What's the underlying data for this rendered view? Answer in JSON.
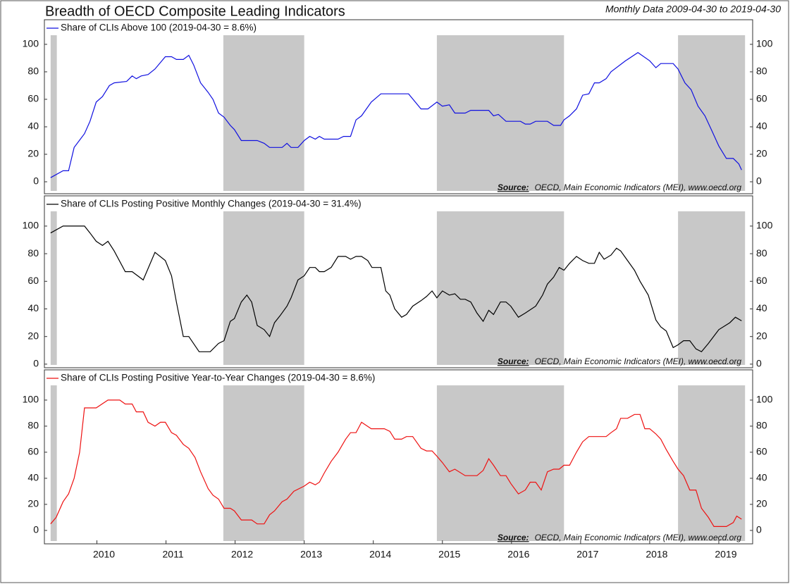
{
  "chart_data": [
    {
      "type": "line",
      "title": "Breadth of OECD Composite Leading Indicators",
      "subtitle": "Monthly Data 2009-04-30 to 2019-04-30",
      "x": [
        2009.33,
        2009.51,
        2009.59,
        2009.67,
        2009.82,
        2009.9,
        2009.99,
        2010.08,
        2010.18,
        2010.25,
        2010.43,
        2010.51,
        2010.57,
        2010.64,
        2010.74,
        2010.84,
        2010.99,
        2011.08,
        2011.15,
        2011.25,
        2011.33,
        2011.4,
        2011.5,
        2011.61,
        2011.68,
        2011.76,
        2011.84,
        2011.93,
        2011.99,
        2012.09,
        2012.32,
        2012.42,
        2012.5,
        2012.68,
        2012.75,
        2012.81,
        2012.91,
        2013.0,
        2013.08,
        2013.16,
        2013.22,
        2013.29,
        2013.49,
        2013.57,
        2013.67,
        2013.75,
        2013.83,
        2013.97,
        2014.11,
        2014.51,
        2014.69,
        2014.79,
        2014.92,
        2015.0,
        2015.1,
        2015.18,
        2015.33,
        2015.41,
        2015.67,
        2015.74,
        2015.81,
        2015.92,
        2016.13,
        2016.2,
        2016.27,
        2016.35,
        2016.52,
        2016.61,
        2016.71,
        2016.76,
        2016.84,
        2016.94,
        2017.03,
        2017.12,
        2017.2,
        2017.27,
        2017.37,
        2017.44,
        2017.65,
        2017.83,
        2018.0,
        2018.09,
        2018.16,
        2018.34,
        2018.41,
        2018.51,
        2018.6,
        2018.7,
        2018.8,
        2018.9,
        2019.0,
        2019.11,
        2019.21,
        2019.29,
        2019.33
      ],
      "series": [
        {
          "name": "Share of CLIs Above 100 (2019-04-30 = 8.6%)",
          "color": "#1010e0",
          "values": [
            3,
            8,
            8,
            25,
            35,
            44,
            58,
            62,
            70,
            72,
            73,
            77,
            75,
            77,
            78,
            82,
            91,
            91,
            89,
            89,
            92,
            85,
            72,
            65,
            60,
            50,
            47,
            41,
            38,
            30,
            30,
            28,
            25,
            25,
            28,
            25,
            25,
            30,
            33,
            31,
            33,
            31,
            31,
            33,
            33,
            45,
            48,
            58,
            64,
            64,
            53,
            53,
            58,
            55,
            56,
            50,
            50,
            52,
            52,
            48,
            49,
            44,
            44,
            42,
            42,
            44,
            44,
            41,
            41,
            45,
            48,
            53,
            63,
            64,
            72,
            72,
            75,
            80,
            88,
            94,
            88,
            83,
            86,
            86,
            82,
            72,
            67,
            55,
            48,
            37,
            26,
            17,
            17,
            13,
            8.6
          ]
        }
      ],
      "xlim": [
        2009.24,
        2019.49
      ],
      "ylim": [
        -8.7,
        117.9
      ],
      "yticks": [
        0,
        20,
        40,
        60,
        80,
        100
      ],
      "grid": false,
      "shaded_periods": [
        [
          2009.33,
          2009.42
        ],
        [
          2011.83,
          2013.0
        ],
        [
          2014.92,
          2016.76
        ],
        [
          2018.41,
          2019.38
        ]
      ],
      "shade_color": "#c8c8c8",
      "source_label": "Source:",
      "source": "OECD, Main Economic Indicators (MEI), www.oecd.org"
    },
    {
      "type": "line",
      "x": [
        2009.33,
        2009.51,
        2009.82,
        2009.9,
        2009.99,
        2010.08,
        2010.16,
        2010.25,
        2010.41,
        2010.51,
        2010.67,
        2010.84,
        2010.99,
        2011.08,
        2011.15,
        2011.25,
        2011.33,
        2011.48,
        2011.64,
        2011.76,
        2011.84,
        2011.93,
        2011.99,
        2012.09,
        2012.17,
        2012.24,
        2012.32,
        2012.42,
        2012.5,
        2012.57,
        2012.65,
        2012.75,
        2012.81,
        2012.91,
        2013.0,
        2013.08,
        2013.16,
        2013.22,
        2013.29,
        2013.39,
        2013.49,
        2013.6,
        2013.67,
        2013.75,
        2013.83,
        2013.92,
        2013.98,
        2014.11,
        2014.18,
        2014.24,
        2014.31,
        2014.41,
        2014.48,
        2014.57,
        2014.69,
        2014.77,
        2014.85,
        2014.92,
        2015.0,
        2015.1,
        2015.18,
        2015.26,
        2015.33,
        2015.41,
        2015.5,
        2015.59,
        2015.67,
        2015.74,
        2015.84,
        2015.92,
        2015.99,
        2016.1,
        2016.2,
        2016.35,
        2016.45,
        2016.52,
        2016.61,
        2016.69,
        2016.76,
        2016.84,
        2016.94,
        2017.03,
        2017.12,
        2017.2,
        2017.27,
        2017.34,
        2017.44,
        2017.52,
        2017.58,
        2017.68,
        2017.78,
        2017.86,
        2017.98,
        2018.09,
        2018.16,
        2018.24,
        2018.34,
        2018.41,
        2018.49,
        2018.58,
        2018.67,
        2018.75,
        2018.85,
        2019.0,
        2019.16,
        2019.24,
        2019.33
      ],
      "series": [
        {
          "name": "Share of CLIs Posting Positive Monthly Changes (2019-04-30 = 31.4%)",
          "color": "#000000",
          "values": [
            95,
            100,
            100,
            95,
            89,
            86,
            89,
            82,
            67,
            67,
            61,
            81,
            75,
            64,
            45,
            20,
            20,
            9,
            9,
            15,
            17,
            31,
            33,
            45,
            50,
            45,
            28,
            25,
            20,
            30,
            35,
            42,
            48,
            61,
            64,
            70,
            70,
            67,
            67,
            70,
            78,
            78,
            76,
            78,
            78,
            75,
            70,
            70,
            53,
            50,
            40,
            34,
            36,
            42,
            46,
            49,
            53,
            48,
            53,
            50,
            51,
            47,
            47,
            45,
            37,
            31,
            39,
            36,
            45,
            45,
            42,
            34,
            37,
            42,
            50,
            58,
            63,
            70,
            68,
            73,
            78,
            75,
            73,
            73,
            81,
            76,
            79,
            84,
            82,
            75,
            68,
            60,
            50,
            32,
            27,
            24,
            12,
            14,
            17,
            17,
            11,
            9,
            15,
            25,
            30,
            34,
            31.4
          ]
        }
      ],
      "xlim": [
        2009.24,
        2019.49
      ],
      "ylim": [
        -2.6,
        121.9
      ],
      "yticks": [
        0,
        20,
        40,
        60,
        80,
        100
      ],
      "grid": false,
      "shaded_periods": [
        [
          2009.33,
          2009.42
        ],
        [
          2011.83,
          2013.0
        ],
        [
          2014.92,
          2016.76
        ],
        [
          2018.41,
          2019.38
        ]
      ],
      "shade_color": "#c8c8c8",
      "source_label": "Source:",
      "source": "OECD, Main Economic Indicators (MEI), www.oecd.org"
    },
    {
      "type": "line",
      "x": [
        2009.33,
        2009.41,
        2009.51,
        2009.59,
        2009.67,
        2009.75,
        2009.82,
        2009.99,
        2010.16,
        2010.33,
        2010.41,
        2010.51,
        2010.57,
        2010.67,
        2010.74,
        2010.84,
        2010.92,
        2010.99,
        2011.08,
        2011.15,
        2011.25,
        2011.33,
        2011.42,
        2011.5,
        2011.61,
        2011.68,
        2011.76,
        2011.84,
        2011.93,
        2011.99,
        2012.09,
        2012.24,
        2012.32,
        2012.42,
        2012.5,
        2012.57,
        2012.68,
        2012.75,
        2012.85,
        2013.0,
        2013.08,
        2013.16,
        2013.22,
        2013.29,
        2013.39,
        2013.49,
        2013.6,
        2013.67,
        2013.75,
        2013.83,
        2013.97,
        2014.16,
        2014.24,
        2014.31,
        2014.41,
        2014.48,
        2014.57,
        2014.69,
        2014.77,
        2014.85,
        2014.92,
        2015.0,
        2015.1,
        2015.18,
        2015.33,
        2015.5,
        2015.59,
        2015.67,
        2015.74,
        2015.84,
        2015.92,
        2015.99,
        2016.1,
        2016.2,
        2016.27,
        2016.35,
        2016.43,
        2016.52,
        2016.61,
        2016.69,
        2016.76,
        2016.84,
        2016.94,
        2017.03,
        2017.12,
        2017.27,
        2017.37,
        2017.44,
        2017.52,
        2017.58,
        2017.68,
        2017.78,
        2017.86,
        2017.93,
        2018.0,
        2018.09,
        2018.16,
        2018.24,
        2018.34,
        2018.41,
        2018.49,
        2018.58,
        2018.67,
        2018.75,
        2018.85,
        2018.93,
        2019.11,
        2019.21,
        2019.26,
        2019.33
      ],
      "series": [
        {
          "name": "Share of CLIs Posting Positive Year-to-Year Changes (2019-04-30 = 8.6%)",
          "color": "#ee1111",
          "values": [
            5,
            10,
            22,
            28,
            40,
            60,
            94,
            94,
            100,
            100,
            97,
            97,
            91,
            91,
            83,
            80,
            83,
            83,
            75,
            73,
            66,
            63,
            56,
            45,
            32,
            27,
            24,
            17,
            17,
            15,
            8,
            8,
            5,
            5,
            12,
            15,
            22,
            24,
            30,
            34,
            37,
            35,
            37,
            44,
            53,
            60,
            70,
            75,
            75,
            83,
            78,
            78,
            76,
            70,
            70,
            72,
            72,
            63,
            61,
            61,
            57,
            52,
            45,
            47,
            42,
            42,
            46,
            55,
            50,
            42,
            42,
            36,
            28,
            31,
            37,
            37,
            31,
            45,
            47,
            47,
            50,
            50,
            60,
            68,
            72,
            72,
            72,
            75,
            78,
            86,
            86,
            89,
            89,
            78,
            78,
            74,
            70,
            62,
            53,
            47,
            42,
            31,
            31,
            17,
            10,
            3,
            3,
            6,
            11,
            8.6
          ]
        }
      ],
      "xlim": [
        2009.24,
        2019.49
      ],
      "ylim": [
        -10.3,
        123.2
      ],
      "yticks": [
        0,
        20,
        40,
        60,
        80,
        100
      ],
      "xticks": [
        2010,
        2011,
        2012,
        2013,
        2014,
        2015,
        2016,
        2017,
        2018,
        2019
      ],
      "grid": false,
      "shaded_periods": [
        [
          2009.33,
          2009.42
        ],
        [
          2011.83,
          2013.0
        ],
        [
          2014.92,
          2016.76
        ],
        [
          2018.41,
          2019.38
        ]
      ],
      "shade_color": "#c8c8c8",
      "source_label": "Source:",
      "source": "OECD, Main Economic Indicators (MEI), www.oecd.org"
    }
  ]
}
